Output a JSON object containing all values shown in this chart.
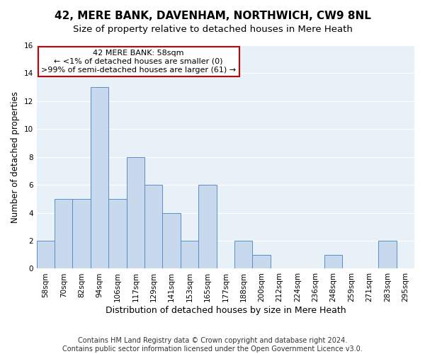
{
  "title": "42, MERE BANK, DAVENHAM, NORTHWICH, CW9 8NL",
  "subtitle": "Size of property relative to detached houses in Mere Heath",
  "xlabel": "Distribution of detached houses by size in Mere Heath",
  "ylabel": "Number of detached properties",
  "bins": [
    "58sqm",
    "70sqm",
    "82sqm",
    "94sqm",
    "106sqm",
    "117sqm",
    "129sqm",
    "141sqm",
    "153sqm",
    "165sqm",
    "177sqm",
    "188sqm",
    "200sqm",
    "212sqm",
    "224sqm",
    "236sqm",
    "248sqm",
    "259sqm",
    "271sqm",
    "283sqm",
    "295sqm"
  ],
  "values": [
    2,
    5,
    5,
    13,
    5,
    8,
    6,
    4,
    2,
    6,
    0,
    2,
    1,
    0,
    0,
    0,
    1,
    0,
    0,
    2,
    0
  ],
  "bar_color": "#c8d9ee",
  "bar_edge_color": "#5b8dc8",
  "ylim": [
    0,
    16
  ],
  "yticks": [
    0,
    2,
    4,
    6,
    8,
    10,
    12,
    14,
    16
  ],
  "annotation_title": "42 MERE BANK: 58sqm",
  "annotation_line1": "← <1% of detached houses are smaller (0)",
  "annotation_line2": ">99% of semi-detached houses are larger (61) →",
  "annotation_box_color": "#ffffff",
  "annotation_box_edge_color": "#cc0000",
  "footer_line1": "Contains HM Land Registry data © Crown copyright and database right 2024.",
  "footer_line2": "Contains public sector information licensed under the Open Government Licence v3.0.",
  "title_fontsize": 11,
  "subtitle_fontsize": 9.5,
  "xlabel_fontsize": 9,
  "ylabel_fontsize": 8.5,
  "tick_fontsize": 7.5,
  "footer_fontsize": 7,
  "annotation_fontsize": 8,
  "bg_color": "#e8f0f8",
  "grid_color": "#ffffff"
}
